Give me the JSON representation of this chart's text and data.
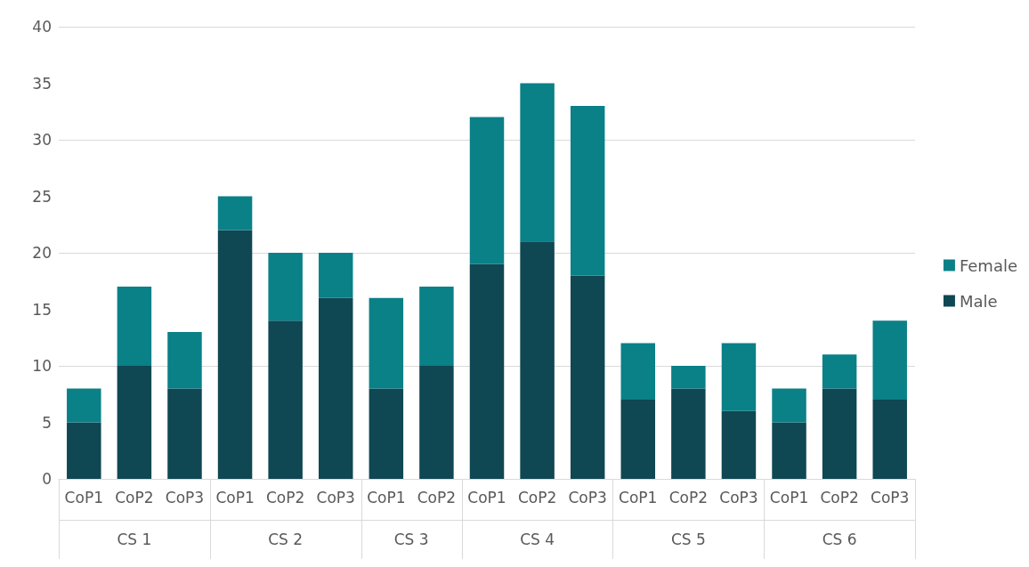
{
  "chart_data": {
    "type": "bar",
    "stacked": true,
    "categories": [
      "CoP1",
      "CoP2",
      "CoP3",
      "CoP1",
      "CoP2",
      "CoP3",
      "CoP1",
      "CoP2",
      "CoP1",
      "CoP2",
      "CoP3",
      "CoP1",
      "CoP2",
      "CoP3",
      "CoP1",
      "CoP2",
      "CoP3"
    ],
    "series": [
      {
        "name": "Male",
        "color": "#0f4753",
        "values": [
          5,
          10,
          8,
          22,
          14,
          16,
          8,
          10,
          19,
          21,
          18,
          7,
          8,
          6,
          5,
          8,
          7
        ]
      },
      {
        "name": "Female",
        "color": "#0a8087",
        "values": [
          3,
          7,
          5,
          3,
          6,
          4,
          8,
          7,
          13,
          14,
          15,
          5,
          2,
          6,
          3,
          3,
          7
        ]
      }
    ],
    "annotations": [
      "CS 1",
      "CS 2",
      "CS 3",
      "CS 4",
      "CS 5",
      "CS 6"
    ],
    "ylim": [
      0,
      40
    ],
    "yticks": [
      0,
      5,
      10,
      15,
      20,
      25,
      30,
      35,
      40
    ],
    "grid": "y",
    "legend": "right"
  }
}
